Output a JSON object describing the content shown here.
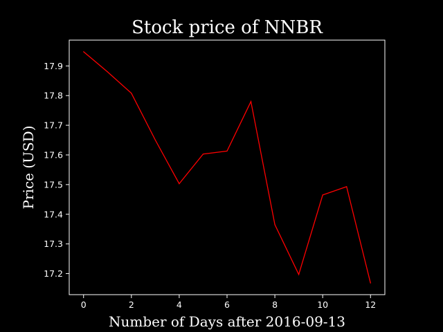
{
  "chart_data": {
    "type": "line",
    "title": "Stock price of NNBR",
    "xlabel": "Number of Days after 2016-09-13",
    "ylabel": "Price (USD)",
    "x": [
      0,
      1,
      2,
      3,
      4,
      5,
      6,
      7,
      8,
      9,
      10,
      11,
      12
    ],
    "series": [
      {
        "values": [
          17.948,
          17.88,
          17.808,
          17.65,
          17.503,
          17.603,
          17.613,
          17.78,
          17.365,
          17.197,
          17.465,
          17.493,
          17.168
        ]
      }
    ],
    "xlim": [
      -0.6,
      12.6
    ],
    "ylim": [
      17.129,
      17.987
    ],
    "x_ticks": [
      "0",
      "2",
      "4",
      "6",
      "8",
      "10",
      "12"
    ],
    "y_ticks": [
      "17.2",
      "17.3",
      "17.4",
      "17.5",
      "17.6",
      "17.7",
      "17.8",
      "17.9"
    ],
    "grid": false,
    "colors": {
      "background": "#000000",
      "line": "#ff0000",
      "axes": "#ffffff",
      "text": "#ffffff"
    }
  }
}
